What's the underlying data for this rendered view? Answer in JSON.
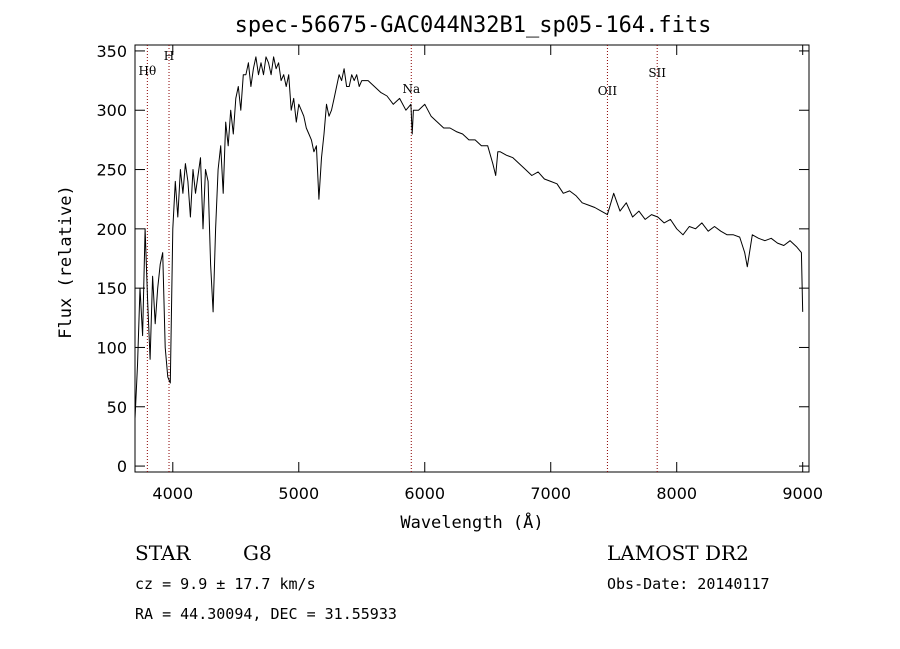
{
  "chart_data": {
    "type": "line",
    "title": "spec-56675-GAC044N32B1_sp05-164.fits",
    "xlabel": "Wavelength (Å)",
    "ylabel": "Flux (relative)",
    "xlim": [
      3700,
      9050
    ],
    "ylim": [
      -5,
      355
    ],
    "xticks": [
      4000,
      5000,
      6000,
      7000,
      8000,
      9000
    ],
    "yticks": [
      0,
      50,
      100,
      150,
      200,
      250,
      300,
      350
    ],
    "line_color": "#000000",
    "marker_color": "#8b0000",
    "grid": false,
    "series": [
      {
        "x": [
          3700,
          3720,
          3740,
          3760,
          3780,
          3800,
          3820,
          3840,
          3860,
          3880,
          3900,
          3920,
          3940,
          3960,
          3980,
          4000,
          4020,
          4040,
          4060,
          4080,
          4100,
          4120,
          4140,
          4160,
          4180,
          4200,
          4220,
          4240,
          4260,
          4280,
          4300,
          4320,
          4340,
          4360,
          4380,
          4400,
          4420,
          4440,
          4460,
          4480,
          4500,
          4520,
          4540,
          4560,
          4580,
          4600,
          4620,
          4640,
          4660,
          4680,
          4700,
          4720,
          4740,
          4760,
          4780,
          4800,
          4820,
          4840,
          4860,
          4880,
          4900,
          4920,
          4940,
          4960,
          4980,
          5000,
          5020,
          5040,
          5060,
          5080,
          5100,
          5120,
          5140,
          5160,
          5180,
          5200,
          5220,
          5240,
          5260,
          5280,
          5300,
          5320,
          5340,
          5360,
          5380,
          5400,
          5420,
          5440,
          5460,
          5480,
          5500,
          5550,
          5600,
          5650,
          5700,
          5750,
          5800,
          5850,
          5890,
          5900,
          5910,
          5950,
          6000,
          6050,
          6100,
          6150,
          6200,
          6250,
          6300,
          6350,
          6400,
          6450,
          6500,
          6540,
          6563,
          6580,
          6600,
          6650,
          6700,
          6750,
          6800,
          6850,
          6900,
          6950,
          7000,
          7050,
          7100,
          7150,
          7200,
          7250,
          7300,
          7350,
          7400,
          7450,
          7500,
          7550,
          7600,
          7650,
          7700,
          7750,
          7800,
          7850,
          7900,
          7950,
          8000,
          8050,
          8100,
          8150,
          8200,
          8250,
          8300,
          8350,
          8400,
          8450,
          8500,
          8540,
          8560,
          8600,
          8650,
          8700,
          8750,
          8800,
          8850,
          8900,
          8950,
          8990,
          9000
        ],
        "y": [
          40,
          85,
          150,
          110,
          200,
          140,
          90,
          160,
          120,
          150,
          170,
          180,
          100,
          75,
          70,
          200,
          240,
          210,
          250,
          230,
          255,
          240,
          210,
          250,
          230,
          245,
          260,
          200,
          250,
          240,
          170,
          130,
          200,
          250,
          270,
          230,
          290,
          270,
          300,
          280,
          310,
          320,
          300,
          330,
          330,
          340,
          320,
          335,
          345,
          330,
          340,
          330,
          345,
          340,
          330,
          345,
          335,
          340,
          325,
          330,
          320,
          330,
          300,
          310,
          290,
          305,
          300,
          295,
          285,
          280,
          275,
          265,
          270,
          225,
          260,
          280,
          305,
          295,
          300,
          310,
          320,
          330,
          325,
          335,
          320,
          320,
          330,
          325,
          330,
          320,
          325,
          325,
          320,
          315,
          312,
          305,
          310,
          300,
          305,
          280,
          300,
          300,
          305,
          295,
          290,
          285,
          285,
          282,
          280,
          275,
          275,
          270,
          270,
          255,
          245,
          265,
          265,
          262,
          260,
          255,
          250,
          245,
          248,
          242,
          240,
          238,
          230,
          232,
          228,
          222,
          220,
          218,
          215,
          212,
          230,
          215,
          222,
          210,
          215,
          208,
          212,
          210,
          205,
          208,
          200,
          195,
          202,
          200,
          205,
          198,
          202,
          198,
          195,
          195,
          193,
          180,
          168,
          195,
          192,
          190,
          192,
          188,
          186,
          190,
          185,
          180,
          130
        ]
      }
    ],
    "marker_lines": [
      {
        "x": 3798,
        "label": "Hθ"
      },
      {
        "x": 3970,
        "label": "H"
      },
      {
        "x": 5893,
        "label": "Na"
      },
      {
        "x": 7450,
        "label": "OII"
      },
      {
        "x": 7845,
        "label": "SII"
      }
    ]
  },
  "info": {
    "class": "STAR",
    "subclass": "G8",
    "survey": "LAMOST DR2",
    "cz": "cz = 9.9 ± 17.7 km/s",
    "obs_date": "Obs-Date: 20140117",
    "radec": "RA =  44.30094, DEC =  31.55933"
  }
}
